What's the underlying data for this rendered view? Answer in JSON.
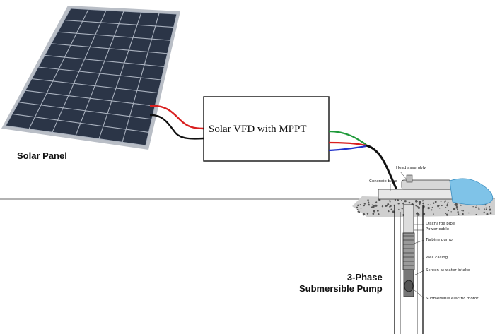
{
  "labels": {
    "solar_panel": "Solar Panel",
    "controller": "Solar VFD with MPPT",
    "pump_line1": "3-Phase",
    "pump_line2": "Submersible Pump"
  },
  "well_callouts": {
    "head_assembly": "Head assembly",
    "concrete_base": "Concrete base",
    "discharge_pipe": "Discharge pipe",
    "power_cable": "Power cable",
    "turbine_pump": "Turbine pump",
    "well_casing": "Well casing",
    "screen": "Screen at water intake",
    "motor": "Submersible electric motor"
  },
  "colors": {
    "panel_cell": "#2b3547",
    "panel_grid": "#c9ced6",
    "wire_red": "#d91f1f",
    "wire_black": "#111111",
    "wire_green": "#1f9a3a",
    "wire_blue": "#2233cc",
    "water": "#7fc3e8"
  }
}
